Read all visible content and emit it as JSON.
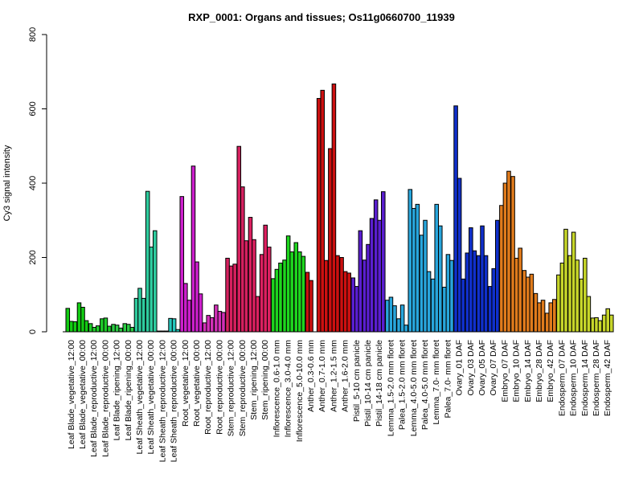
{
  "chart_data": {
    "type": "bar",
    "title": "RXP_0001: Organs and tissues; Os11g0660700_11939",
    "xlabel": "",
    "ylabel": "Cy3 signal intensity",
    "ylim": [
      0,
      800
    ],
    "yticks": [
      0,
      200,
      400,
      600,
      800
    ],
    "grid": false,
    "categories": [
      "Leaf Blade_vegetative_12:00",
      "Leaf Blade_vegetative_00:00",
      "Leaf Blade_reproductive_12:00",
      "Leaf Blade_reproductive_00:00",
      "Leaf Blade_ripening_12:00",
      "Leaf Blade_ripening_00:00",
      "Leaf Sheath_vegetative_12:00",
      "Leaf Sheath_vegetative_00:00",
      "Leaf Sheath_reproductive_12:00",
      "Leaf Sheath_reproductive_00:00",
      "Root_vegetative_12:00",
      "Root_vegetative_00:00",
      "Root_reproductive_12:00",
      "Root_reproductive_00:00",
      "Stem_reproductive_12:00",
      "Stem_reproductive_00:00",
      "Stem_ripening_12:00",
      "Stem_ripening_00:00",
      "Inflorescence_0.6-1.0 mm",
      "Inflorescence_3.0-4.0 mm",
      "Inflorescence_5.0-10.0 mm",
      "Anther_0.3-0.6 mm",
      "Anther_0.7-1.0 mm",
      "Anther_1.2-1.5 mm",
      "Anther_1.6-2.0 mm",
      "Pistil_5-10 cm panicle",
      "Pistil_10-14 cm panicle",
      "Pistil_14-18 cm panicle",
      "Lemma_1.5-2.0 mm floret",
      "Palea_1.5-2.0 mm floret",
      "Lemma_4.0-5.0 mm floret",
      "Palea_4.0-5.0 mm floret",
      "Lemma_7.0- mm floret",
      "Palea_7.0- mm floret",
      "Ovary_01 DAF",
      "Ovary_03 DAF",
      "Ovary_05 DAF",
      "Ovary_07 DAF",
      "Embryo_07 DAF",
      "Embryo_10 DAF",
      "Embryo_14 DAF",
      "Embryo_28 DAF",
      "Embryo_42 DAF",
      "Endosperm_07 DAF",
      "Endosperm_10 DAF",
      "Endosperm_14 DAF",
      "Endosperm_28 DAF",
      "Endosperm_42 DAF"
    ],
    "series": [
      {
        "values": [
          [
            63,
            28,
            27
          ],
          [
            78,
            66,
            30
          ],
          [
            22,
            12,
            16
          ],
          [
            35,
            37,
            15
          ],
          [
            20,
            18,
            10
          ],
          [
            22,
            20,
            12
          ],
          [
            90,
            117,
            90
          ],
          [
            378,
            228,
            272
          ],
          [
            2,
            2,
            2
          ],
          [
            36,
            35,
            6
          ],
          [
            364,
            130,
            85
          ],
          [
            446,
            188,
            102
          ],
          [
            24,
            44,
            38
          ],
          [
            72,
            55,
            52
          ],
          [
            198,
            177,
            182
          ],
          [
            499,
            390,
            245
          ],
          [
            308,
            248,
            95
          ],
          [
            208,
            287,
            228
          ],
          [
            143,
            168,
            185
          ],
          [
            193,
            258,
            215
          ],
          [
            240,
            215,
            203
          ],
          [
            160,
            138,
            0
          ],
          [
            628,
            650,
            192
          ],
          [
            493,
            667,
            205
          ],
          [
            200,
            162,
            158
          ],
          [
            145,
            122,
            272
          ],
          [
            193,
            235,
            305
          ],
          [
            355,
            300,
            377
          ],
          [
            85,
            93,
            70
          ],
          [
            35,
            72,
            18
          ],
          [
            383,
            332,
            343
          ],
          [
            260,
            300,
            162
          ],
          [
            142,
            343,
            285
          ],
          [
            120,
            208,
            192
          ],
          [
            608,
            413,
            142
          ],
          [
            212,
            280,
            218
          ],
          [
            205,
            285,
            205
          ],
          [
            122,
            170,
            300
          ],
          [
            340,
            400,
            432
          ],
          [
            418,
            198,
            225
          ],
          [
            165,
            147,
            155
          ],
          [
            103,
            78,
            85
          ],
          [
            50,
            78,
            87
          ],
          [
            153,
            185,
            276
          ],
          [
            205,
            268,
            193
          ],
          [
            142,
            198,
            95
          ],
          [
            37,
            38,
            30
          ],
          [
            45,
            62,
            45
          ]
        ]
      }
    ],
    "group_colors": [
      "#13cc13",
      "#13cc13",
      "#1fcc2a",
      "#1fcc2a",
      "#2ccc44",
      "#2ccc44",
      "#2ecc9e",
      "#2ecc9e",
      "#23c7bc",
      "#23c7bc",
      "#cc1fcc",
      "#cc1fcc",
      "#d230b8",
      "#d230b8",
      "#d6205f",
      "#d6205f",
      "#dc2060",
      "#dc2060",
      "#1ed61e",
      "#1ed61e",
      "#1ed61e",
      "#cc1010",
      "#cc1010",
      "#cc1010",
      "#cc1010",
      "#5a1ed0",
      "#5a1ed0",
      "#5a1ed0",
      "#28a6dc",
      "#28a6dc",
      "#28a6dc",
      "#28a6dc",
      "#28a6dc",
      "#28a6dc",
      "#1030cc",
      "#1030cc",
      "#1030cc",
      "#1030cc",
      "#e07b1c",
      "#e07b1c",
      "#e07b1c",
      "#e07b1c",
      "#e07b1c",
      "#c7d62a",
      "#c7d62a",
      "#c7d62a",
      "#c7d62a",
      "#c7d62a"
    ]
  }
}
